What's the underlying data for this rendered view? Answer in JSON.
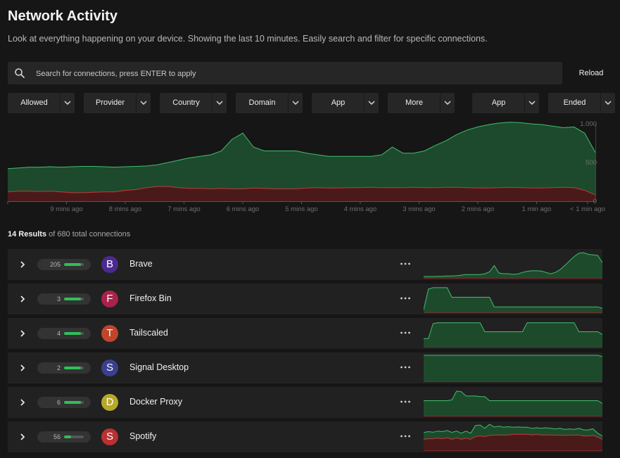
{
  "header": {
    "title": "Network Activity",
    "subtitle": "Look at everything happening on your device. Showing the last 10 minutes. Easily search and filter for specific connections."
  },
  "search": {
    "placeholder": "Search for connections, press ENTER to apply",
    "value": ""
  },
  "reload_label": "Reload",
  "filters": [
    "Allowed",
    "Provider",
    "Country",
    "Domain",
    "App",
    "More",
    "App",
    "Ended"
  ],
  "chart_data": {
    "type": "area",
    "x_tick_labels": [
      "9 mins ago",
      "8 mins ago",
      "7 mins ago",
      "6 mins ago",
      "5 mins ago",
      "4 mins ago",
      "3 mins ago",
      "2 mins ago",
      "1 min ago",
      "< 1 min ago"
    ],
    "y_tick_labels": [
      "1.000",
      "500",
      "0"
    ],
    "ylim": [
      0,
      1000
    ],
    "series": [
      {
        "color": "#2c8a4c",
        "values": [
          420,
          430,
          440,
          440,
          445,
          440,
          445,
          450,
          450,
          445,
          440,
          445,
          450,
          455,
          470,
          500,
          530,
          560,
          580,
          600,
          650,
          800,
          880,
          700,
          650,
          650,
          650,
          650,
          620,
          600,
          580,
          580,
          580,
          580,
          580,
          600,
          700,
          620,
          620,
          650,
          720,
          780,
          860,
          920,
          960,
          990,
          1010,
          1020,
          1015,
          1000,
          990,
          970,
          950,
          960,
          880,
          630
        ]
      },
      {
        "color": "#8a2a2a",
        "values": [
          120,
          130,
          130,
          125,
          130,
          120,
          110,
          110,
          115,
          120,
          120,
          140,
          150,
          175,
          190,
          190,
          175,
          165,
          165,
          160,
          165,
          160,
          160,
          170,
          165,
          160,
          160,
          160,
          170,
          175,
          170,
          170,
          175,
          175,
          180,
          175,
          175,
          175,
          180,
          175,
          175,
          180,
          180,
          175,
          170,
          170,
          175,
          180,
          175,
          170,
          170,
          175,
          180,
          175,
          140,
          80
        ]
      }
    ]
  },
  "results": {
    "count": "14 Results",
    "of_text": "of 680 total connections"
  },
  "rows": [
    {
      "count": "205",
      "bar": 0.85,
      "letter": "B",
      "avatar_color": "#4b2a8f",
      "name": "Brave",
      "spark": [
        0.05,
        0.05,
        0.05,
        0.06,
        0.06,
        0.07,
        0.07,
        0.08,
        0.1,
        0.12,
        0.12,
        0.12,
        0.12,
        0.15,
        0.22,
        0.45,
        0.18,
        0.15,
        0.15,
        0.13,
        0.14,
        0.2,
        0.24,
        0.26,
        0.26,
        0.25,
        0.2,
        0.15,
        0.2,
        0.3,
        0.45,
        0.62,
        0.78,
        0.9,
        0.92,
        0.86,
        0.84,
        0.82,
        0.55
      ]
    },
    {
      "count": "3",
      "bar": 0.85,
      "letter": "F",
      "avatar_color": "#a8234c",
      "name": "Firefox Bin",
      "spark": [
        0.1,
        0.85,
        0.9,
        0.9,
        0.9,
        0.9,
        0.55,
        0.55,
        0.55,
        0.55,
        0.55,
        0.55,
        0.55,
        0.55,
        0.55,
        0.2,
        0.2,
        0.2,
        0.2,
        0.2,
        0.2,
        0.2,
        0.2,
        0.2,
        0.2,
        0.2,
        0.2,
        0.2,
        0.2,
        0.2,
        0.2,
        0.2,
        0.2,
        0.2,
        0.2,
        0.2,
        0.2,
        0.2,
        0.15
      ]
    },
    {
      "count": "4",
      "bar": 0.85,
      "letter": "T",
      "avatar_color": "#c0452a",
      "name": "Tailscaled",
      "spark": [
        0.3,
        0.3,
        0.85,
        0.88,
        0.88,
        0.88,
        0.88,
        0.88,
        0.88,
        0.88,
        0.88,
        0.88,
        0.88,
        0.55,
        0.55,
        0.55,
        0.55,
        0.55,
        0.55,
        0.55,
        0.55,
        0.55,
        0.88,
        0.88,
        0.88,
        0.88,
        0.88,
        0.88,
        0.88,
        0.88,
        0.88,
        0.88,
        0.88,
        0.55,
        0.55,
        0.55,
        0.55,
        0.55,
        0.45
      ]
    },
    {
      "count": "2",
      "bar": 0.85,
      "letter": "S",
      "avatar_color": "#3a3f8f",
      "name": "Signal Desktop",
      "spark": [
        0.95,
        0.95,
        0.95,
        0.95,
        0.95,
        0.95,
        0.95,
        0.95,
        0.95,
        0.95,
        0.95,
        0.95,
        0.95,
        0.95,
        0.95,
        0.95,
        0.95,
        0.95,
        0.95,
        0.95,
        0.95,
        0.95,
        0.95,
        0.95,
        0.95,
        0.95,
        0.95,
        0.95,
        0.95,
        0.95,
        0.95,
        0.95,
        0.95,
        0.95,
        0.95,
        0.95,
        0.95,
        0.95,
        0.9
      ]
    },
    {
      "count": "6",
      "bar": 0.85,
      "letter": "D",
      "avatar_color": "#b8a82a",
      "name": "Docker Proxy",
      "spark": [
        0.55,
        0.55,
        0.55,
        0.55,
        0.55,
        0.55,
        0.58,
        0.9,
        0.88,
        0.72,
        0.72,
        0.72,
        0.7,
        0.7,
        0.55,
        0.55,
        0.55,
        0.55,
        0.55,
        0.55,
        0.55,
        0.55,
        0.55,
        0.55,
        0.55,
        0.55,
        0.55,
        0.55,
        0.55,
        0.55,
        0.55,
        0.55,
        0.55,
        0.55,
        0.55,
        0.55,
        0.55,
        0.55,
        0.45
      ]
    },
    {
      "count": "56",
      "bar": 0.35,
      "letter": "S",
      "avatar_color": "#b83232",
      "name": "Spotify",
      "spark": [
        0.65,
        0.68,
        0.66,
        0.7,
        0.68,
        0.72,
        0.65,
        0.7,
        0.62,
        0.7,
        0.62,
        0.9,
        0.92,
        0.8,
        0.95,
        0.85,
        0.88,
        0.84,
        0.86,
        0.84,
        0.85,
        0.84,
        0.84,
        0.8,
        0.82,
        0.8,
        0.82,
        0.8,
        0.78,
        0.8,
        0.76,
        0.78,
        0.76,
        0.8,
        0.74,
        0.74,
        0.78,
        0.62,
        0.52
      ],
      "spark_red": [
        0.4,
        0.42,
        0.42,
        0.44,
        0.42,
        0.45,
        0.4,
        0.45,
        0.4,
        0.44,
        0.4,
        0.5,
        0.52,
        0.5,
        0.54,
        0.55,
        0.56,
        0.55,
        0.56,
        0.58,
        0.58,
        0.58,
        0.58,
        0.56,
        0.58,
        0.56,
        0.56,
        0.56,
        0.55,
        0.55,
        0.54,
        0.55,
        0.55,
        0.56,
        0.52,
        0.52,
        0.54,
        0.48,
        0.4
      ]
    }
  ]
}
